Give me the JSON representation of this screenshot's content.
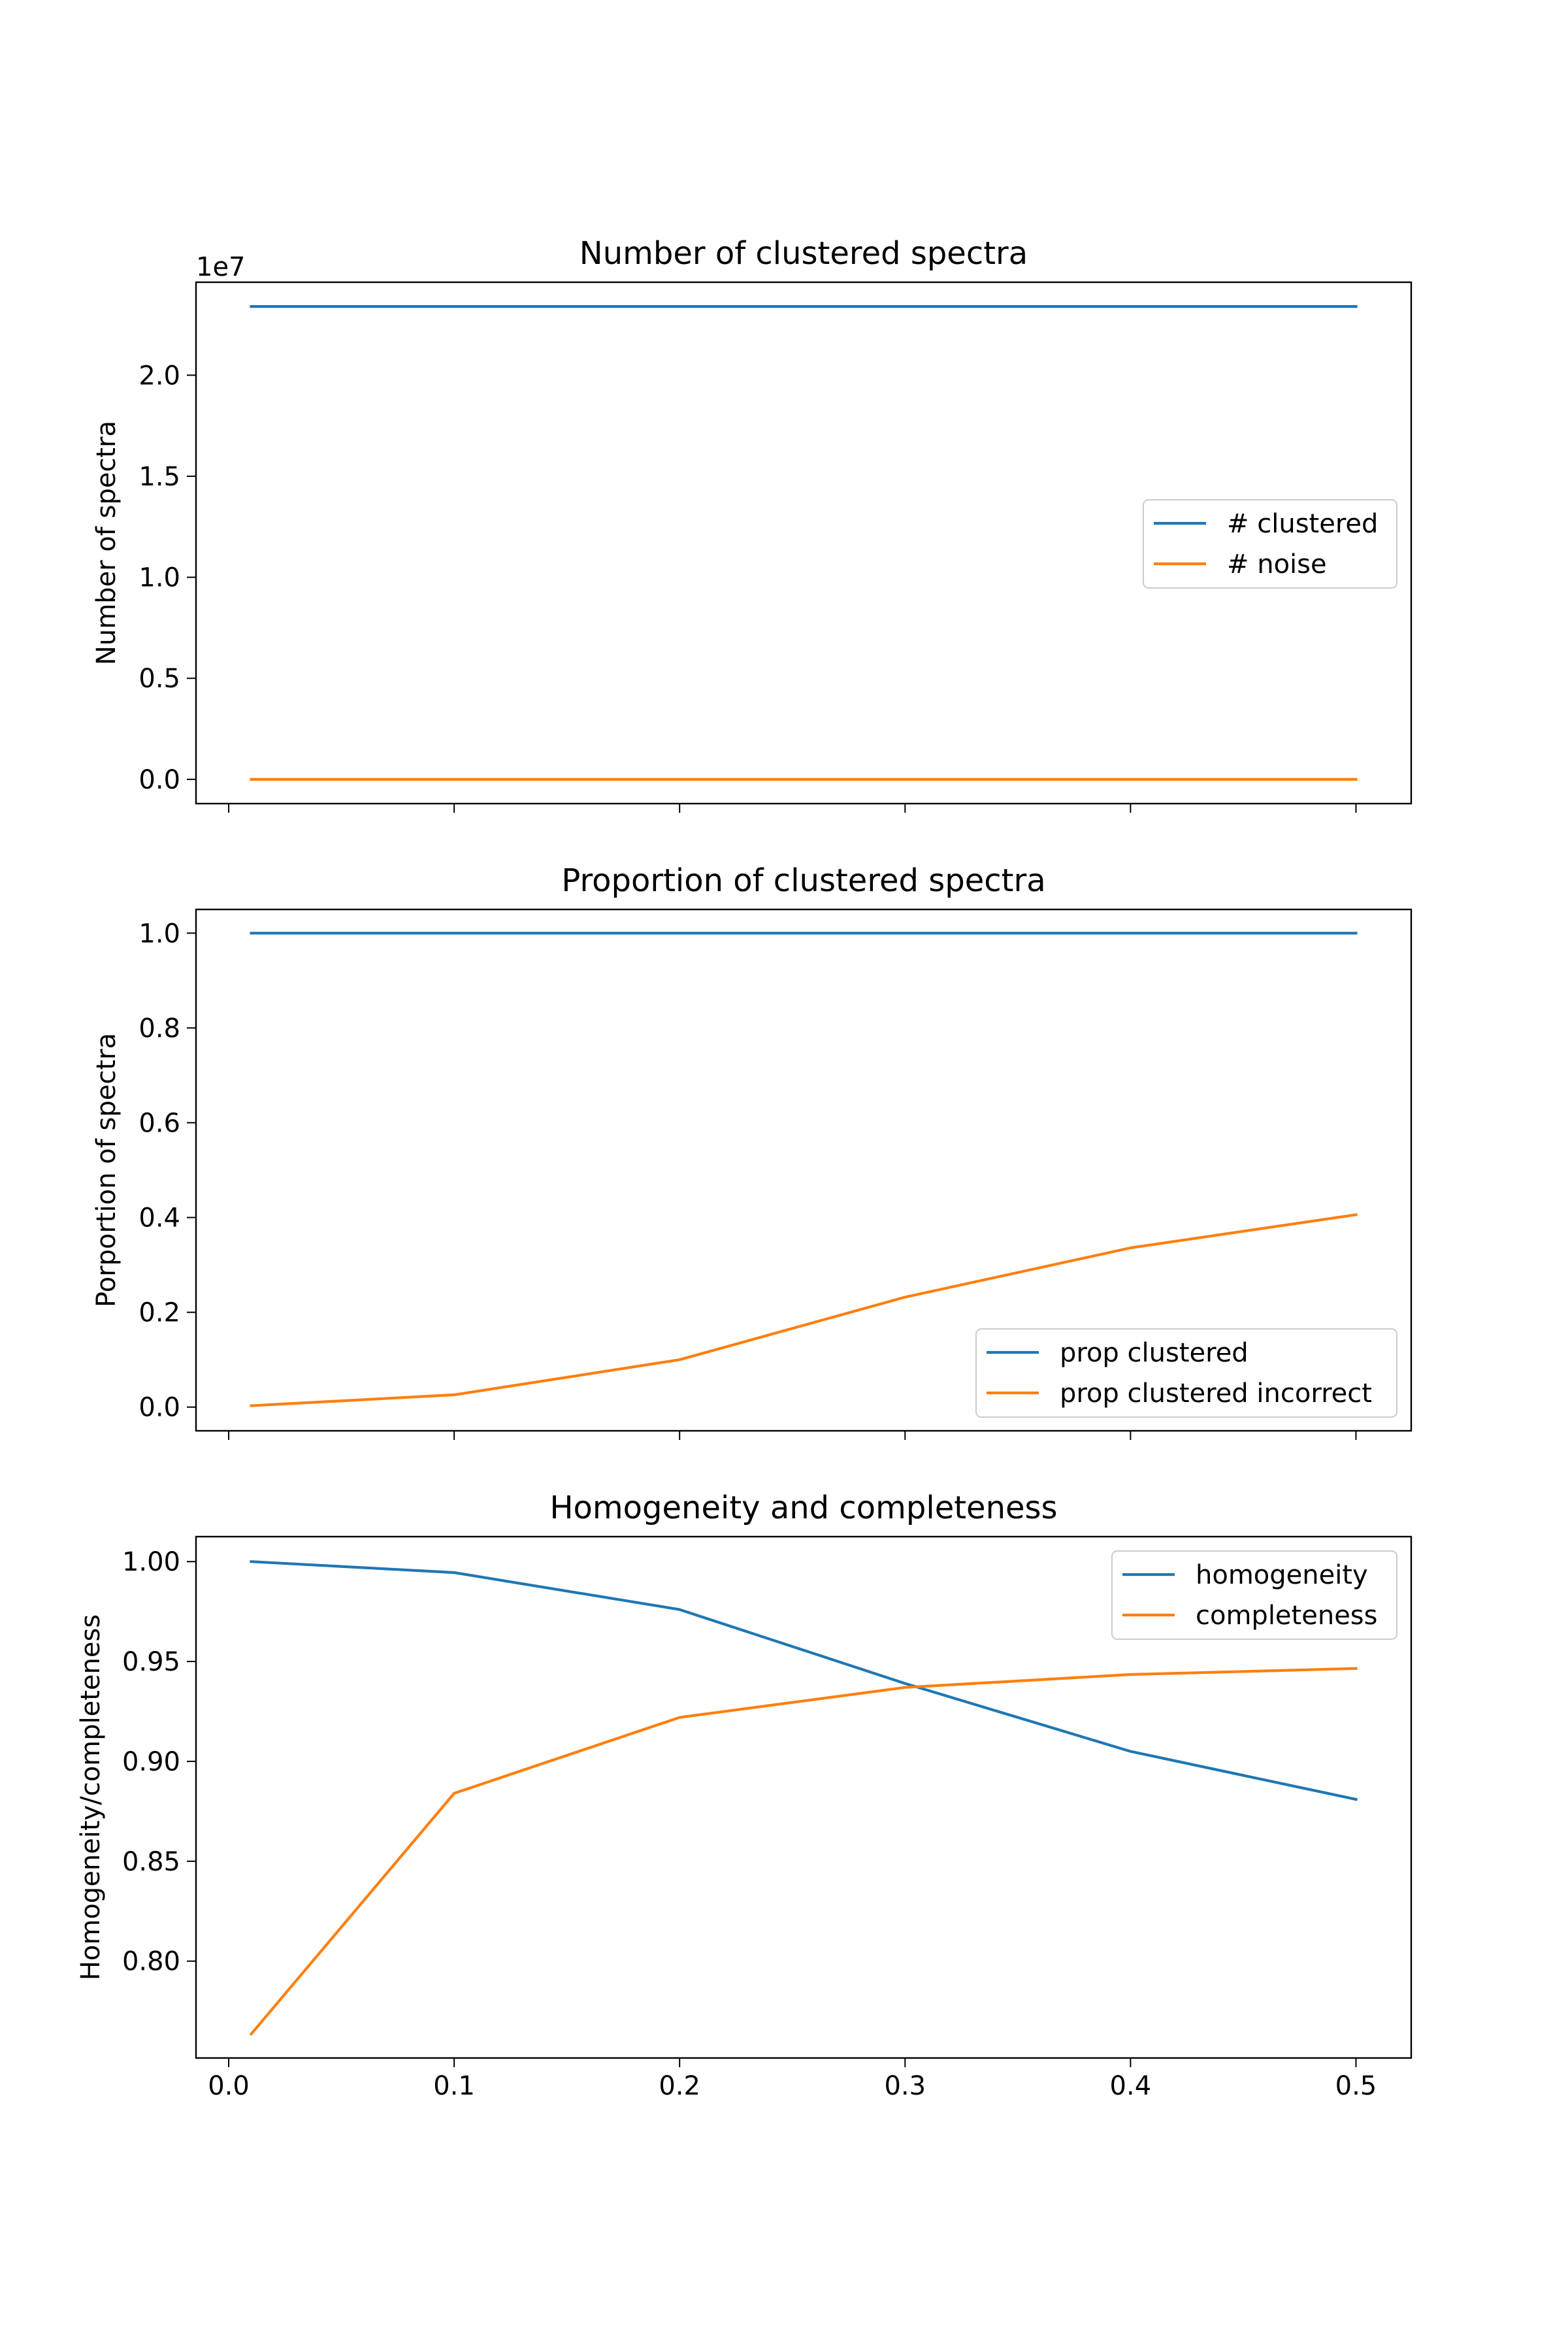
{
  "chart_data": [
    {
      "type": "line",
      "title": "Number of clustered spectra",
      "xlabel": "",
      "ylabel": "Number of spectra",
      "offset_text": "1e7",
      "y_scale": 10000000,
      "x": [
        0.01,
        0.1,
        0.2,
        0.3,
        0.4,
        0.5
      ],
      "xlim": [
        -0.0145,
        0.5245
      ],
      "ylim": [
        -0.12,
        2.46
      ],
      "x_ticks": [
        0.0,
        0.1,
        0.2,
        0.3,
        0.4,
        0.5
      ],
      "x_tick_labels": [],
      "y_ticks": [
        0.0,
        0.5,
        1.0,
        1.5,
        2.0
      ],
      "y_tick_labels": [
        "0.0",
        "0.5",
        "1.0",
        "1.5",
        "2.0"
      ],
      "legend_position": "center-right",
      "grid": false,
      "series": [
        {
          "name": "# clustered",
          "color": "#1f77b4",
          "values": [
            2.34,
            2.34,
            2.34,
            2.34,
            2.34,
            2.34
          ]
        },
        {
          "name": "# noise",
          "color": "#ff7f0e",
          "values": [
            0.0,
            0.0,
            0.0,
            0.0,
            0.0,
            0.0
          ]
        }
      ]
    },
    {
      "type": "line",
      "title": "Proportion of clustered spectra",
      "xlabel": "",
      "ylabel": "Porportion of spectra",
      "x": [
        0.01,
        0.1,
        0.2,
        0.3,
        0.4,
        0.5
      ],
      "xlim": [
        -0.0145,
        0.5245
      ],
      "ylim": [
        -0.05,
        1.05
      ],
      "x_ticks": [
        0.0,
        0.1,
        0.2,
        0.3,
        0.4,
        0.5
      ],
      "x_tick_labels": [],
      "y_ticks": [
        0.0,
        0.2,
        0.4,
        0.6,
        0.8,
        1.0
      ],
      "y_tick_labels": [
        "0.0",
        "0.2",
        "0.4",
        "0.6",
        "0.8",
        "1.0"
      ],
      "legend_position": "lower-right",
      "grid": false,
      "series": [
        {
          "name": "prop clustered",
          "color": "#1f77b4",
          "values": [
            1.0,
            1.0,
            1.0,
            1.0,
            1.0,
            1.0
          ]
        },
        {
          "name": "prop clustered incorrect",
          "color": "#ff7f0e",
          "values": [
            0.003,
            0.026,
            0.1,
            0.232,
            0.336,
            0.406
          ]
        }
      ]
    },
    {
      "type": "line",
      "title": "Homogeneity and completeness",
      "xlabel": "",
      "ylabel": "Homogeneity/completeness",
      "x": [
        0.01,
        0.1,
        0.2,
        0.3,
        0.4,
        0.5
      ],
      "xlim": [
        -0.0145,
        0.5245
      ],
      "ylim": [
        0.7515,
        1.0125
      ],
      "x_ticks": [
        0.0,
        0.1,
        0.2,
        0.3,
        0.4,
        0.5
      ],
      "x_tick_labels": [
        "0.0",
        "0.1",
        "0.2",
        "0.3",
        "0.4",
        "0.5"
      ],
      "y_ticks": [
        0.8,
        0.85,
        0.9,
        0.95,
        1.0
      ],
      "y_tick_labels": [
        "0.80",
        "0.85",
        "0.90",
        "0.95",
        "1.00"
      ],
      "legend_position": "upper-right",
      "grid": false,
      "series": [
        {
          "name": "homogeneity",
          "color": "#1f77b4",
          "values": [
            1.0,
            0.9945,
            0.976,
            0.939,
            0.905,
            0.881
          ]
        },
        {
          "name": "completeness",
          "color": "#ff7f0e",
          "values": [
            0.7635,
            0.884,
            0.922,
            0.937,
            0.9435,
            0.9465
          ]
        }
      ]
    }
  ]
}
